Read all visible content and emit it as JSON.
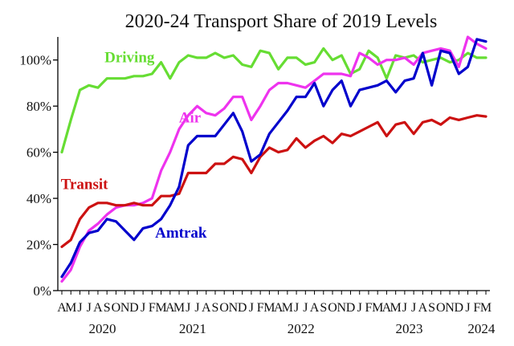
{
  "chart_data": {
    "type": "line",
    "title": "2020-24 Transport Share of 2019 Levels",
    "xlabel": "",
    "ylabel": "",
    "ylim": [
      0,
      110
    ],
    "yticks": [
      0,
      20,
      40,
      60,
      80,
      100
    ],
    "ytick_labels": [
      "0%",
      "20%",
      "40%",
      "60%",
      "80%",
      "100%"
    ],
    "month_labels": [
      "A",
      "M",
      "J",
      "J",
      "A",
      "S",
      "O",
      "N",
      "D",
      "J",
      "F",
      "M",
      "A",
      "M",
      "J",
      "J",
      "A",
      "S",
      "O",
      "N",
      "D",
      "J",
      "F",
      "M",
      "A",
      "M",
      "J",
      "J",
      "A",
      "S",
      "O",
      "N",
      "D",
      "J",
      "F",
      "M",
      "A",
      "M",
      "J",
      "J",
      "A",
      "S",
      "O",
      "N",
      "D",
      "J",
      "F",
      "M"
    ],
    "year_labels": [
      {
        "label": "2020",
        "index": 4.5
      },
      {
        "label": "2021",
        "index": 14.5
      },
      {
        "label": "2022",
        "index": 26.5
      },
      {
        "label": "2023",
        "index": 38.5
      },
      {
        "label": "2024",
        "index": 46.5
      }
    ],
    "grid": false,
    "series": [
      {
        "name": "Driving",
        "color": "#66dd33",
        "label_index": 7.5,
        "label_value": 99,
        "values": [
          60,
          74,
          87,
          89,
          88,
          92,
          92,
          92,
          93,
          93,
          94,
          99,
          92,
          99,
          102,
          101,
          101,
          103,
          101,
          102,
          98,
          97,
          104,
          103,
          96,
          101,
          101,
          98,
          99,
          105,
          100,
          102,
          94,
          96,
          104,
          101,
          92,
          102,
          101,
          102,
          99,
          100,
          101,
          99,
          100,
          103,
          101,
          101
        ]
      },
      {
        "name": "Air",
        "color": "#ee33ee",
        "label_index": 14.2,
        "label_value": 73,
        "values": [
          4,
          9,
          19,
          26,
          29,
          33,
          36,
          37,
          37,
          38,
          40,
          52,
          60,
          70,
          76,
          80,
          77,
          76,
          79,
          84,
          84,
          74,
          80,
          87,
          90,
          90,
          89,
          88,
          91,
          94,
          94,
          94,
          93,
          103,
          101,
          98,
          100,
          100,
          101,
          98,
          103,
          104,
          105,
          104,
          97,
          110,
          107,
          105
        ]
      },
      {
        "name": "Transit",
        "color": "#cc1111",
        "label_index": 2.5,
        "label_value": 44,
        "values": [
          19,
          22,
          31,
          36,
          38,
          38,
          37,
          37,
          38,
          37,
          37,
          41,
          41,
          42,
          51,
          51,
          51,
          55,
          55,
          58,
          57,
          51,
          58,
          62,
          60,
          61,
          66,
          62,
          65,
          67,
          64,
          68,
          67,
          69,
          71,
          73,
          67,
          72,
          73,
          68,
          73,
          74,
          72,
          75,
          74,
          75,
          76,
          75.5
        ]
      },
      {
        "name": "Amtrak",
        "color": "#0000cc",
        "label_index": 13.2,
        "label_value": 23,
        "values": [
          6,
          12,
          21,
          25,
          26,
          31,
          30,
          26,
          22,
          27,
          28,
          31,
          37,
          45,
          63,
          67,
          67,
          67,
          72,
          77,
          69,
          56,
          59,
          68,
          73,
          78,
          84,
          84,
          90,
          80,
          87,
          91,
          80,
          87,
          88,
          89,
          91,
          86,
          91,
          92,
          103,
          89,
          104,
          103,
          94,
          97,
          109,
          108
        ]
      }
    ]
  }
}
